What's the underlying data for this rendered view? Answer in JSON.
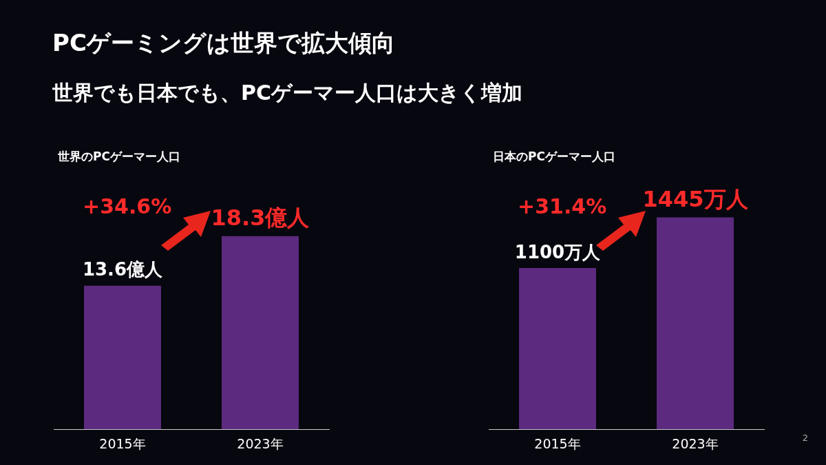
{
  "chart_data": [
    {
      "type": "other",
      "title": "PCゲーミングは世界で拡大傾向",
      "subtitle": "世界でも日本でも、PCゲーマー人口は大きく増加",
      "annotations": [
        "2"
      ]
    },
    {
      "type": "bar",
      "title": "世界のPCゲーマー人口",
      "categories": [
        "2015年",
        "2023年"
      ],
      "values": [
        13.6,
        18.3
      ],
      "color": "#5c2a7e",
      "value_labels": [
        "13.6億人",
        "18.3億人"
      ],
      "annotations": [
        "+34.6%"
      ]
    },
    {
      "type": "bar",
      "title": "日本のPCゲーマー人口",
      "categories": [
        "2015年",
        "2023年"
      ],
      "values": [
        1100,
        1445
      ],
      "color": "#5c2a7e",
      "value_labels": [
        "1100万人",
        "1445万人"
      ],
      "annotations": [
        "+31.4%"
      ]
    }
  ]
}
